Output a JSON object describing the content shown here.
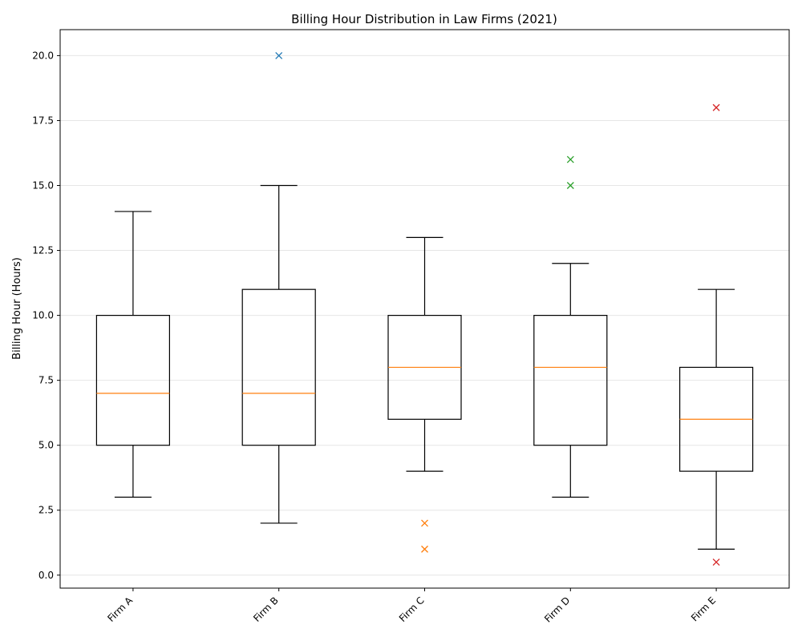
{
  "chart_data": {
    "type": "box",
    "title": "Billing Hour Distribution in Law Firms (2021)",
    "xlabel": "",
    "ylabel": "Billing Hour (Hours)",
    "ylim": [
      -0.5,
      21
    ],
    "yticks": [
      "0.0",
      "2.5",
      "5.0",
      "7.5",
      "10.0",
      "12.5",
      "15.0",
      "17.5",
      "20.0"
    ],
    "grid": "y",
    "box_color": "#000000",
    "median_color": "#ff7f0e",
    "categories": [
      "Firm A",
      "Firm B",
      "Firm C",
      "Firm D",
      "Firm E"
    ],
    "boxes": [
      {
        "category": "Firm A",
        "whisker_low": 3,
        "q1": 5,
        "median": 7,
        "q3": 10,
        "whisker_high": 14,
        "outliers": [],
        "outlier_color": "#1f77b4"
      },
      {
        "category": "Firm B",
        "whisker_low": 2,
        "q1": 5,
        "median": 7,
        "q3": 11,
        "whisker_high": 15,
        "outliers": [
          20
        ],
        "outlier_color": "#1f77b4"
      },
      {
        "category": "Firm C",
        "whisker_low": 4,
        "q1": 6,
        "median": 8,
        "q3": 10,
        "whisker_high": 13,
        "outliers": [
          2,
          1
        ],
        "outlier_color": "#ff7f0e"
      },
      {
        "category": "Firm D",
        "whisker_low": 3,
        "q1": 5,
        "median": 8,
        "q3": 10,
        "whisker_high": 12,
        "outliers": [
          16,
          15
        ],
        "outlier_color": "#2ca02c"
      },
      {
        "category": "Firm E",
        "whisker_low": 1,
        "q1": 4,
        "median": 6,
        "q3": 8,
        "whisker_high": 11,
        "outliers": [
          18,
          0.5
        ],
        "outlier_color": "#d62728"
      }
    ]
  }
}
